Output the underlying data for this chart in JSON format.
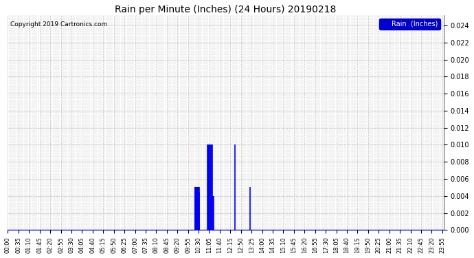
{
  "title": "Rain per Minute (Inches) (24 Hours) 20190218",
  "copyright_text": "Copyright 2019 Cartronics.com",
  "legend_label": "Rain  (Inches)",
  "legend_bg": "#0000CC",
  "legend_fg": "#FFFFFF",
  "ylim": [
    0.0,
    0.0252
  ],
  "yticks": [
    0.0,
    0.002,
    0.004,
    0.006,
    0.008,
    0.01,
    0.012,
    0.014,
    0.016,
    0.018,
    0.02,
    0.022,
    0.024
  ],
  "bg_color": "#FFFFFF",
  "plot_bg": "#FFFFFF",
  "line_color": "#0000EE",
  "baseline_color": "#0000EE",
  "grid_color": "#BBBBBB",
  "rain_events": [
    {
      "time": 618,
      "value": 0.005
    },
    {
      "time": 619,
      "value": 0.005
    },
    {
      "time": 620,
      "value": 0.005
    },
    {
      "time": 621,
      "value": 0.005
    },
    {
      "time": 622,
      "value": 0.005
    },
    {
      "time": 623,
      "value": 0.005
    },
    {
      "time": 624,
      "value": 0.005
    },
    {
      "time": 625,
      "value": 0.005
    },
    {
      "time": 626,
      "value": 0.005
    },
    {
      "time": 627,
      "value": 0.005
    },
    {
      "time": 628,
      "value": 0.005
    },
    {
      "time": 629,
      "value": 0.005
    },
    {
      "time": 630,
      "value": 0.005
    },
    {
      "time": 631,
      "value": 0.005
    },
    {
      "time": 632,
      "value": 0.0045
    },
    {
      "time": 660,
      "value": 0.01
    },
    {
      "time": 661,
      "value": 0.01
    },
    {
      "time": 663,
      "value": 0.01
    },
    {
      "time": 665,
      "value": 0.01
    },
    {
      "time": 667,
      "value": 0.01
    },
    {
      "time": 669,
      "value": 0.01
    },
    {
      "time": 671,
      "value": 0.01
    },
    {
      "time": 673,
      "value": 0.01
    },
    {
      "time": 675,
      "value": 0.01
    },
    {
      "time": 677,
      "value": 0.004
    },
    {
      "time": 679,
      "value": 0.004
    },
    {
      "time": 750,
      "value": 0.01
    },
    {
      "time": 800,
      "value": 0.005
    }
  ]
}
